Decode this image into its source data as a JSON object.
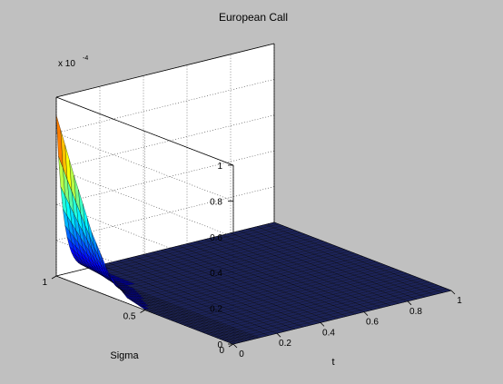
{
  "chart_data": {
    "type": "surface",
    "title": "European Call",
    "xlabel": "t",
    "ylabel": "Sigma",
    "zlabel": "",
    "z_exponent_label": "x 10",
    "z_exponent_power": "-4",
    "xlim": [
      0,
      1
    ],
    "ylim": [
      0,
      1
    ],
    "zlim": [
      0,
      1
    ],
    "x_ticks": [
      "0",
      "0.2",
      "0.4",
      "0.6",
      "0.8",
      "1"
    ],
    "y_ticks": [
      "0",
      "0.5",
      "1"
    ],
    "z_ticks": [
      "0",
      "0.2",
      "0.4",
      "0.6",
      "0.8",
      "1"
    ],
    "grid": true,
    "colormap": "jet",
    "surface": {
      "description_values": "z (x 1e-4) over t in [0,1] and sigma in [0,1]",
      "peak_at": {
        "t": 0,
        "sigma": 1,
        "z": 0.9
      },
      "t_decay_rate": 30,
      "sigma_shape": [
        [
          0.0,
          0.0
        ],
        [
          0.1,
          0.0
        ],
        [
          0.2,
          0.0
        ],
        [
          0.3,
          0.0
        ],
        [
          0.4,
          0.0
        ],
        [
          0.5,
          0.003
        ],
        [
          0.6,
          0.03
        ],
        [
          0.7,
          0.12
        ],
        [
          0.8,
          0.32
        ],
        [
          0.9,
          0.6
        ],
        [
          1.0,
          0.9
        ]
      ]
    },
    "colors": {
      "background": "#c0c0c0",
      "axes_background": "#ffffff",
      "floor_color": "#1c2358"
    }
  }
}
